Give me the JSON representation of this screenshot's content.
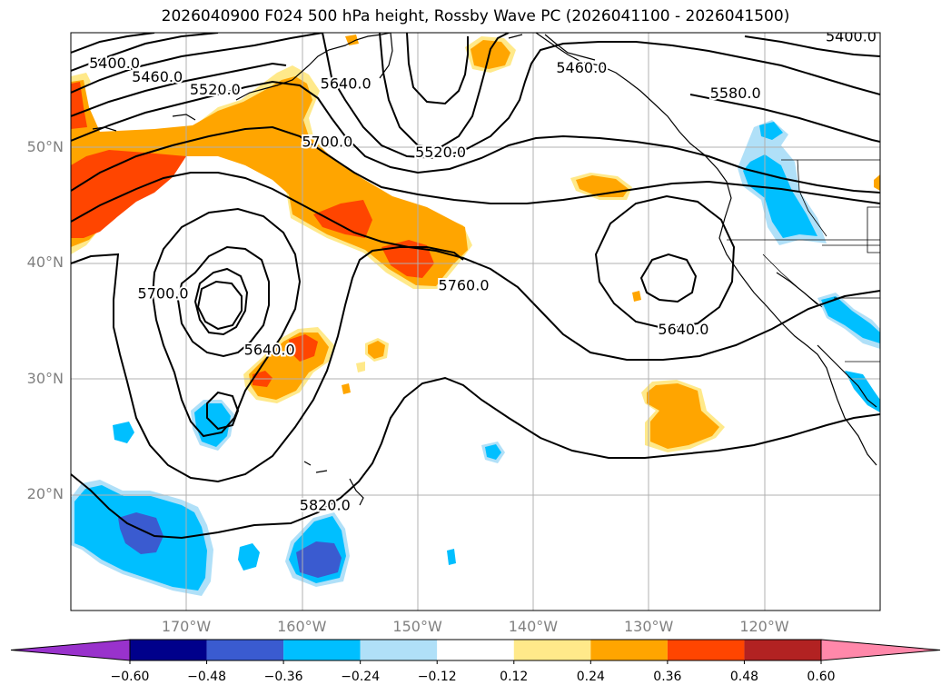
{
  "title": "2026040900 F024 500 hPa height, Rossby Wave PC (2026041100 - 2026041500)",
  "map": {
    "lat_labels": [
      {
        "text": "50°N",
        "lat": 50
      },
      {
        "text": "40°N",
        "lat": 40
      },
      {
        "text": "30°N",
        "lat": 30
      },
      {
        "text": "20°N",
        "lat": 20
      }
    ],
    "lon_labels": [
      {
        "text": "170°W",
        "lon": -170
      },
      {
        "text": "160°W",
        "lon": -160
      },
      {
        "text": "150°W",
        "lon": -150
      },
      {
        "text": "140°W",
        "lon": -140
      },
      {
        "text": "130°W",
        "lon": -130
      },
      {
        "text": "120°W",
        "lon": -120
      }
    ],
    "contour_labels": [
      {
        "text": "5400.0",
        "lon": -176.2,
        "lat": 57.2
      },
      {
        "text": "5460.0",
        "lon": -172.5,
        "lat": 56.0
      },
      {
        "text": "5520.0",
        "lon": -167.5,
        "lat": 54.9
      },
      {
        "text": "5640.0",
        "lon": -156.2,
        "lat": 55.4
      },
      {
        "text": "5700.0",
        "lon": -157.8,
        "lat": 50.4
      },
      {
        "text": "5700.0",
        "lon": -172.0,
        "lat": 37.3
      },
      {
        "text": "5640.0",
        "lon": -162.8,
        "lat": 32.4
      },
      {
        "text": "5820.0",
        "lon": -158.0,
        "lat": 19.0
      },
      {
        "text": "5520.0",
        "lon": -148.0,
        "lat": 49.5
      },
      {
        "text": "5460.0",
        "lon": -135.8,
        "lat": 56.8
      },
      {
        "text": "5760.0",
        "lon": -146.0,
        "lat": 38.0
      },
      {
        "text": "5640.0",
        "lon": -127.0,
        "lat": 34.2
      },
      {
        "text": "5580.0",
        "lon": -122.5,
        "lat": 54.6
      },
      {
        "text": "5400.0",
        "lon": -112.5,
        "lat": 59.5
      }
    ]
  },
  "colorbar": {
    "levels": [
      -0.6,
      -0.48,
      -0.36,
      -0.24,
      -0.12,
      0.12,
      0.24,
      0.36,
      0.48,
      0.6
    ],
    "labels": [
      "−0.60",
      "−0.48",
      "−0.36",
      "−0.24",
      "−0.12",
      "0.12",
      "0.24",
      "0.36",
      "0.48",
      "0.60"
    ],
    "colors": [
      "#9932cc",
      "#00008b",
      "#3a5bd0",
      "#00bfff",
      "#b0e0f8",
      "#ffffff",
      "#ffe98a",
      "#ffa500",
      "#ff4500",
      "#b22222",
      "#ff88aa"
    ]
  }
}
